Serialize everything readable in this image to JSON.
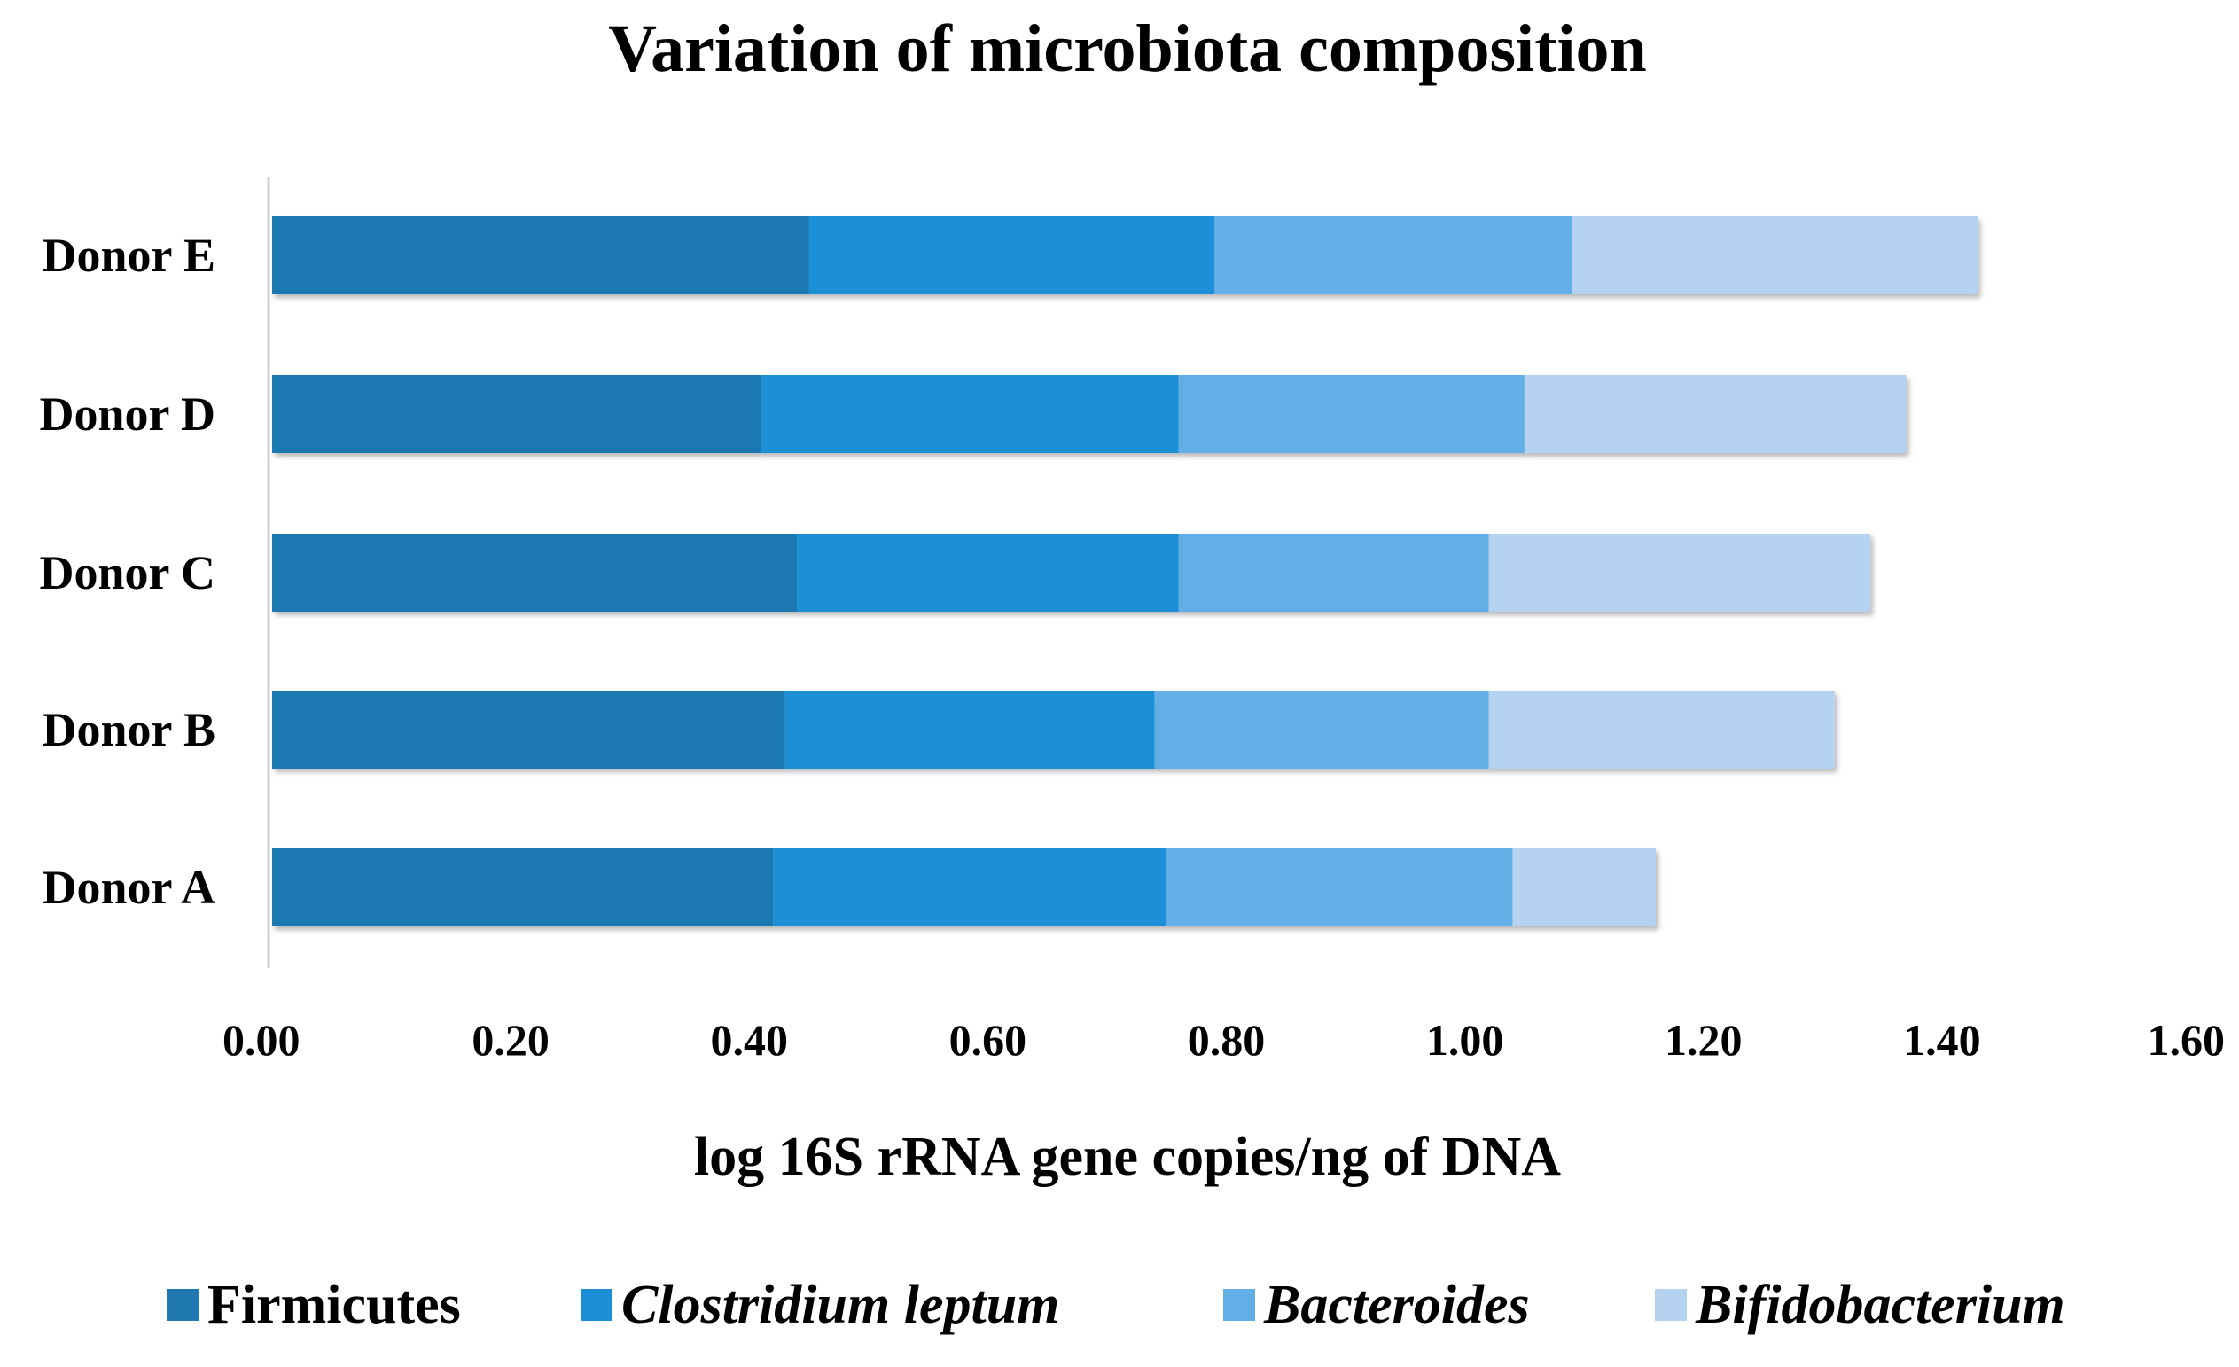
{
  "chart_data": {
    "type": "bar",
    "orientation": "horizontal",
    "stacked": true,
    "title": "Variation of microbiota composition",
    "xlabel": "log 16S rRNA gene copies/ng of DNA",
    "ylabel": "",
    "xlim": [
      0,
      1.6
    ],
    "xticks": [
      "0.00",
      "0.20",
      "0.40",
      "0.60",
      "0.80",
      "1.00",
      "1.20",
      "1.40",
      "1.60"
    ],
    "xtick_values": [
      0,
      0.2,
      0.4,
      0.6,
      0.8,
      1.0,
      1.2,
      1.4,
      1.6
    ],
    "categories": [
      "Donor A",
      "Donor B",
      "Donor C",
      "Donor D",
      "Donor E"
    ],
    "series": [
      {
        "name": "Firmicutes",
        "italic": false,
        "color": "#1f78b0",
        "values": [
          0.42,
          0.43,
          0.44,
          0.41,
          0.45
        ]
      },
      {
        "name": "Clostridium leptum",
        "italic": true,
        "color": "#1a8fd6",
        "values": [
          0.33,
          0.31,
          0.32,
          0.35,
          0.34
        ]
      },
      {
        "name": "Bacteroides",
        "italic": true,
        "color": "#62aee6",
        "values": [
          0.29,
          0.28,
          0.26,
          0.29,
          0.3
        ]
      },
      {
        "name": "Bifidobacterium",
        "italic": true,
        "color": "#b5d3f0",
        "values": [
          0.12,
          0.29,
          0.32,
          0.32,
          0.34
        ]
      }
    ],
    "legend_position": "bottom",
    "grid": false
  }
}
